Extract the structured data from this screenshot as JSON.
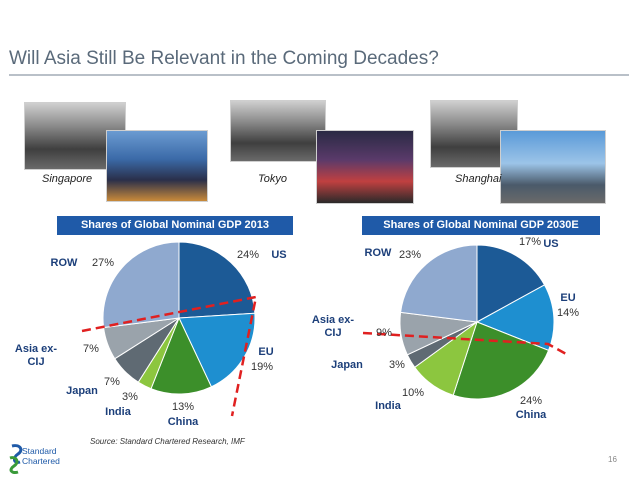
{
  "slide": {
    "title": "Will Asia Still Be Relevant in the Coming Decades?",
    "cities": [
      "Singapore",
      "Tokyo",
      "Shanghai"
    ],
    "source": "Source: Standard Chartered Research, IMF",
    "logo_line1": "Standard",
    "logo_line2": "Chartered",
    "page_number": "16"
  },
  "colors": {
    "US": "#1c5a96",
    "EU": "#1e8fd0",
    "China": "#3c8f2a",
    "India": "#8cc63f",
    "Japan": "#5f6a73",
    "Asia ex-CIJ": "#9aa3ab",
    "ROW": "#8fa9cf",
    "divider": "#e02020",
    "header": "#1f5aa8",
    "label_blue": "#1c3f7a"
  },
  "chart_data": [
    {
      "type": "pie",
      "title": "Shares of Global Nominal GDP 2013",
      "categories": [
        "US",
        "EU",
        "China",
        "India",
        "Japan",
        "Asia ex-CIJ",
        "ROW"
      ],
      "category_labels": [
        "US",
        "EU",
        "China",
        "India",
        "Japan",
        "Asia ex-\nCIJ",
        "ROW"
      ],
      "values": [
        24,
        19,
        13,
        3,
        7,
        7,
        27
      ],
      "value_labels": [
        "24%",
        "19%",
        "13%",
        "3%",
        "7%",
        "7%",
        "27%"
      ]
    },
    {
      "type": "pie",
      "title": "Shares of Global Nominal GDP 2030E",
      "categories": [
        "US",
        "EU",
        "China",
        "India",
        "Japan",
        "Asia ex-CIJ",
        "ROW"
      ],
      "category_labels": [
        "US",
        "EU",
        "China",
        "India",
        "Japan",
        "Asia ex-\nCIJ",
        "ROW"
      ],
      "values": [
        17,
        14,
        24,
        10,
        3,
        9,
        23
      ],
      "value_labels": [
        "17%",
        "14%",
        "24%",
        "10%",
        "3%",
        "9%",
        "23%"
      ]
    }
  ]
}
